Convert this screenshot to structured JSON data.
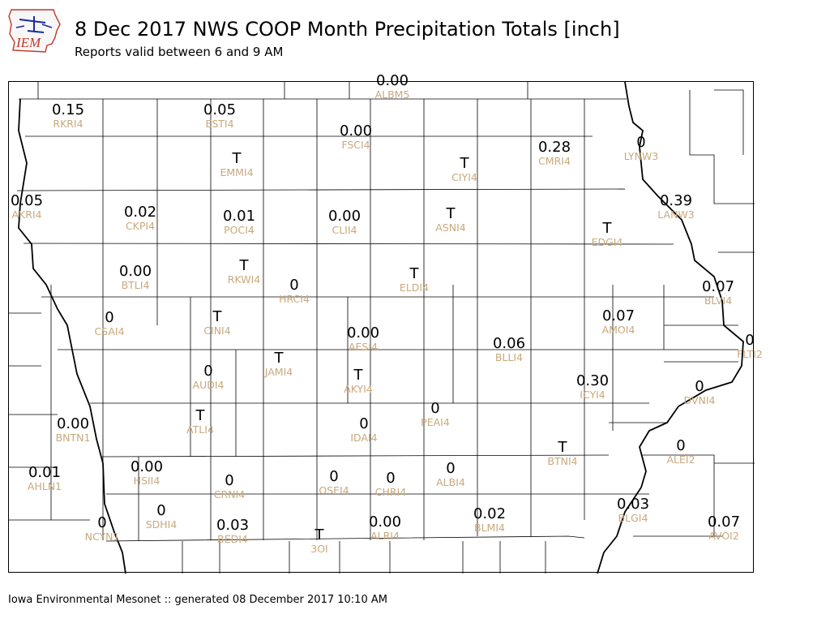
{
  "title": "8 Dec 2017 NWS COOP Month Precipitation Totals [inch]",
  "subtitle": "Reports valid between 6 and 9 AM",
  "footer": "Iowa Environmental Mesonet :: generated 08 December 2017 10:10 AM",
  "logo": {
    "text": "IEM",
    "color": "#c0392b",
    "icon": "iowa-state-outline"
  },
  "colors": {
    "value": "#000000",
    "station_id": "#c9a87c",
    "boundary": "#000000"
  },
  "stations": [
    {
      "id": "RKRI4",
      "value": "0.15"
    },
    {
      "id": "ESTI4",
      "value": "0.05"
    },
    {
      "id": "FSCI4",
      "value": "0.00"
    },
    {
      "id": "EMMI4",
      "value": "T"
    },
    {
      "id": "CIYI4",
      "value": "T"
    },
    {
      "id": "CMRI4",
      "value": "0.28"
    },
    {
      "id": "LYNW3",
      "value": "0"
    },
    {
      "id": "AKRI4",
      "value": "0.05"
    },
    {
      "id": "CKPI4",
      "value": "0.02"
    },
    {
      "id": "POCI4",
      "value": "0.01"
    },
    {
      "id": "CLII4",
      "value": "0.00"
    },
    {
      "id": "ASNI4",
      "value": "T"
    },
    {
      "id": "LANW3",
      "value": "0.39"
    },
    {
      "id": "EDGI4",
      "value": "T"
    },
    {
      "id": "BTLI4",
      "value": "0.00"
    },
    {
      "id": "RKWI4",
      "value": "T"
    },
    {
      "id": "ELDI4",
      "value": "T"
    },
    {
      "id": "HRCI4",
      "value": "0"
    },
    {
      "id": "BLVI4",
      "value": "0.07"
    },
    {
      "id": "CSAI4",
      "value": "0"
    },
    {
      "id": "CINI4",
      "value": "T"
    },
    {
      "id": "AESI4",
      "value": "0.00"
    },
    {
      "id": "AMOI4",
      "value": "0.07"
    },
    {
      "id": "BLLI4",
      "value": "0.06"
    },
    {
      "id": "AUDI4",
      "value": "0"
    },
    {
      "id": "JAMI4",
      "value": "T"
    },
    {
      "id": "AKYI4",
      "value": "T"
    },
    {
      "id": "ICYI4",
      "value": "0.30"
    },
    {
      "id": "DVNI4",
      "value": "0"
    },
    {
      "id": "ATLI4",
      "value": "T"
    },
    {
      "id": "PEAI4",
      "value": "0"
    },
    {
      "id": "BNTN1",
      "value": "0.00"
    },
    {
      "id": "IDAI4",
      "value": "0"
    },
    {
      "id": "BTNI4",
      "value": "T"
    },
    {
      "id": "ALEI2",
      "value": "0"
    },
    {
      "id": "AHLN1",
      "value": "0.01"
    },
    {
      "id": "HSII4",
      "value": "0.00"
    },
    {
      "id": "CRNI4",
      "value": "0"
    },
    {
      "id": "OSEI4",
      "value": "0"
    },
    {
      "id": "CHRI4",
      "value": "0"
    },
    {
      "id": "ALBI4",
      "value": "0"
    },
    {
      "id": "NCYN1",
      "value": "0"
    },
    {
      "id": "SDHI4",
      "value": "0"
    },
    {
      "id": "BEDI4",
      "value": "0.03"
    },
    {
      "id": "3OI",
      "value": "T"
    },
    {
      "id": "ALRI4",
      "value": "0.00"
    },
    {
      "id": "BLMI4",
      "value": "0.02"
    },
    {
      "id": "BLGI4",
      "value": "0.03"
    },
    {
      "id": "AVOI2",
      "value": "0.07"
    },
    {
      "id": "ALBM5",
      "value": "0.00"
    },
    {
      "id": "FLTI2",
      "value": "0"
    }
  ]
}
